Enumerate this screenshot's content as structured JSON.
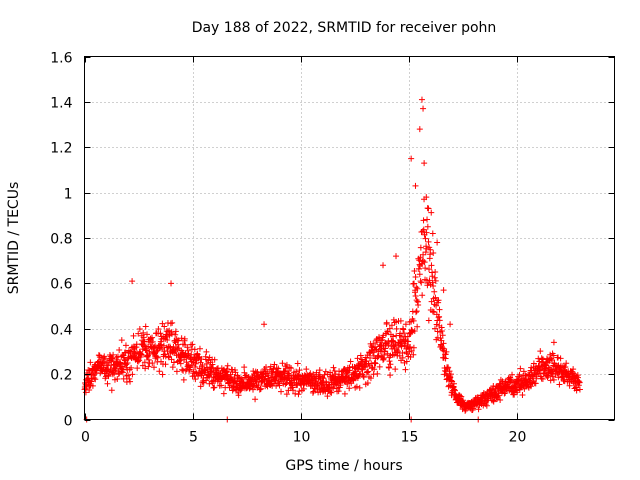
{
  "chart_data": {
    "type": "scatter",
    "title": "Day 188 of 2022, SRMTID for receiver pohn",
    "xlabel": "GPS time / hours",
    "ylabel": "SRMTID / TECUs",
    "xlim": [
      0,
      24.5
    ],
    "ylim": [
      0,
      1.6
    ],
    "x_ticks": [
      "0",
      "5",
      "10",
      "15",
      "20"
    ],
    "y_ticks": [
      "0",
      "0.2",
      "0.4",
      "0.6",
      "0.8",
      "1",
      "1.2",
      "1.4",
      "1.6"
    ],
    "grid": true,
    "marker": "plus",
    "series_color": "#ff0000",
    "envelope_hours": [
      0.0,
      0.5,
      1.0,
      1.5,
      2.0,
      2.5,
      3.0,
      3.5,
      4.0,
      4.5,
      5.0,
      5.5,
      6.0,
      6.5,
      7.0,
      7.5,
      8.0,
      8.5,
      9.0,
      9.5,
      10.0,
      10.5,
      11.0,
      11.5,
      12.0,
      12.5,
      13.0,
      13.5,
      14.0,
      14.5,
      15.0,
      15.3,
      15.6,
      15.9,
      16.2,
      16.5,
      16.8,
      17.0,
      17.3,
      17.6,
      18.0,
      18.5,
      19.0,
      19.5,
      20.0,
      20.5,
      21.0,
      21.5,
      22.0,
      22.5,
      22.9
    ],
    "envelope_center": [
      0.14,
      0.22,
      0.24,
      0.22,
      0.26,
      0.3,
      0.31,
      0.32,
      0.33,
      0.28,
      0.25,
      0.22,
      0.2,
      0.18,
      0.17,
      0.16,
      0.17,
      0.18,
      0.19,
      0.18,
      0.18,
      0.17,
      0.16,
      0.17,
      0.18,
      0.2,
      0.24,
      0.28,
      0.32,
      0.35,
      0.3,
      0.55,
      0.7,
      0.72,
      0.55,
      0.32,
      0.2,
      0.14,
      0.09,
      0.06,
      0.07,
      0.09,
      0.12,
      0.14,
      0.15,
      0.17,
      0.22,
      0.24,
      0.22,
      0.19,
      0.17
    ],
    "envelope_spread": [
      0.05,
      0.08,
      0.1,
      0.11,
      0.12,
      0.12,
      0.12,
      0.12,
      0.13,
      0.12,
      0.1,
      0.09,
      0.08,
      0.07,
      0.07,
      0.07,
      0.07,
      0.07,
      0.07,
      0.07,
      0.07,
      0.07,
      0.07,
      0.07,
      0.07,
      0.08,
      0.1,
      0.12,
      0.14,
      0.15,
      0.14,
      0.25,
      0.3,
      0.28,
      0.2,
      0.12,
      0.08,
      0.06,
      0.04,
      0.03,
      0.03,
      0.04,
      0.05,
      0.06,
      0.06,
      0.07,
      0.08,
      0.08,
      0.07,
      0.06,
      0.06
    ],
    "peaks": [
      {
        "x": 2.2,
        "y": 0.61
      },
      {
        "x": 4.0,
        "y": 0.6
      },
      {
        "x": 8.3,
        "y": 0.42
      },
      {
        "x": 13.8,
        "y": 0.68
      },
      {
        "x": 14.4,
        "y": 0.72
      },
      {
        "x": 15.1,
        "y": 1.15
      },
      {
        "x": 15.3,
        "y": 1.03
      },
      {
        "x": 15.5,
        "y": 1.28
      },
      {
        "x": 15.6,
        "y": 1.41
      },
      {
        "x": 15.65,
        "y": 1.37
      },
      {
        "x": 15.7,
        "y": 1.13
      },
      {
        "x": 15.8,
        "y": 0.98
      },
      {
        "x": 15.9,
        "y": 0.93
      },
      {
        "x": 16.1,
        "y": 0.82
      },
      {
        "x": 16.3,
        "y": 0.78
      },
      {
        "x": 16.6,
        "y": 0.57
      },
      {
        "x": 16.9,
        "y": 0.42
      },
      {
        "x": 21.7,
        "y": 0.34
      }
    ],
    "zero_markers": [
      0.1,
      6.6,
      15.1,
      18.2
    ]
  }
}
